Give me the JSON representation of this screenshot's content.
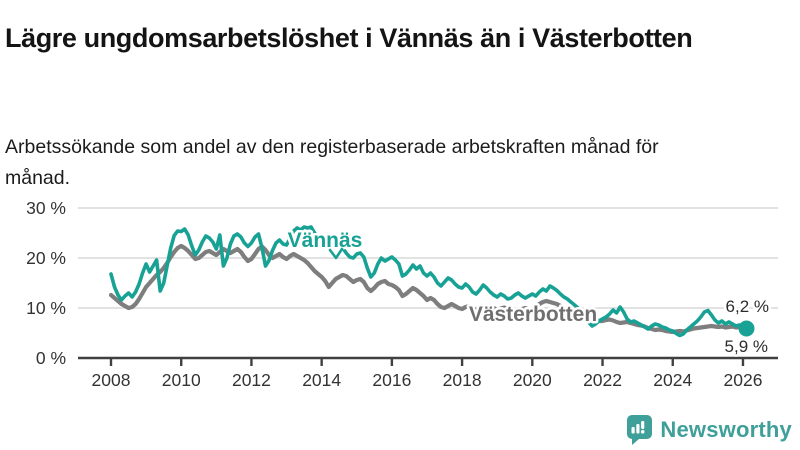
{
  "header": {
    "title": "Lägre ungdomsarbetslöshet i Vännäs än i Västerbotten",
    "subtitle": "Arbetssökande som andel av den registerbaserade arbetskraften månad för månad."
  },
  "chart_data": {
    "type": "line",
    "title": "Lägre ungdomsarbetslöshet i Vännäs än i Västerbotten",
    "subtitle": "Arbetssökande som andel av den registerbaserade arbetskraften månad för månad.",
    "unit": "%",
    "x_start": 2008.0,
    "x_step": 0.1,
    "x_end": 2026.1,
    "grid": "horizontal",
    "x_axis": {
      "ticks": [
        2008,
        2010,
        2012,
        2014,
        2016,
        2018,
        2020,
        2022,
        2024,
        2026
      ]
    },
    "y_axis": {
      "min": 0,
      "max": 30,
      "ticks": [
        {
          "value": 0,
          "label": "0 %"
        },
        {
          "value": 10,
          "label": "10 %"
        },
        {
          "value": 20,
          "label": "20 %"
        },
        {
          "value": 30,
          "label": "30 %"
        }
      ]
    },
    "series": [
      {
        "name": "Västerbotten",
        "color": "#7e7e7e",
        "label_color": "#6f6f6f",
        "end_label": "6,2 %",
        "end_value": 6.2,
        "values": [
          12.6,
          12.0,
          11.4,
          10.8,
          10.4,
          10.0,
          10.2,
          10.8,
          11.8,
          13.0,
          14.2,
          15.0,
          15.8,
          16.6,
          17.2,
          18.0,
          19.0,
          20.2,
          21.2,
          22.0,
          22.4,
          22.0,
          21.4,
          20.6,
          19.8,
          20.0,
          20.6,
          21.2,
          21.4,
          21.0,
          20.6,
          21.2,
          21.8,
          21.4,
          21.0,
          21.4,
          21.8,
          21.2,
          20.2,
          19.4,
          19.8,
          20.8,
          21.8,
          22.3,
          21.6,
          20.6,
          20.0,
          20.4,
          20.8,
          20.2,
          19.8,
          20.4,
          20.8,
          20.4,
          20.0,
          19.6,
          19.0,
          18.2,
          17.4,
          16.8,
          16.2,
          15.4,
          14.2,
          15.0,
          15.8,
          16.2,
          16.6,
          16.4,
          15.8,
          15.2,
          15.6,
          15.8,
          15.2,
          14.0,
          13.4,
          14.0,
          14.8,
          15.2,
          15.4,
          14.8,
          14.6,
          14.2,
          13.6,
          12.4,
          12.8,
          13.4,
          14.0,
          13.6,
          13.0,
          12.4,
          11.6,
          12.0,
          11.6,
          10.8,
          10.2,
          10.0,
          10.4,
          10.8,
          10.4,
          10.0,
          9.8,
          10.2,
          10.4,
          10.0,
          9.6,
          9.4,
          9.8,
          10.2,
          10.4,
          10.0,
          9.6,
          9.9,
          10.1,
          9.7,
          9.3,
          9.1,
          9.4,
          9.8,
          10.0,
          9.7,
          9.8,
          10.2,
          10.8,
          11.2,
          11.4,
          11.2,
          11.0,
          10.8,
          10.4,
          10.0,
          9.6,
          9.2,
          8.8,
          8.4,
          8.1,
          7.9,
          7.7,
          7.6,
          7.5,
          7.4,
          7.4,
          7.6,
          7.7,
          7.5,
          7.2,
          7.0,
          7.1,
          7.2,
          7.0,
          6.8,
          6.6,
          6.5,
          6.3,
          6.0,
          5.8,
          5.6,
          5.7,
          5.6,
          5.4,
          5.3,
          5.2,
          5.3,
          5.4,
          5.3,
          5.5,
          5.7,
          5.9,
          6.0,
          6.1,
          6.2,
          6.3,
          6.4,
          6.3,
          6.2,
          6.3,
          6.1,
          6.2,
          6.3,
          6.1,
          6.2,
          6.1,
          6.2
        ]
      },
      {
        "name": "Vännäs",
        "color": "#17a295",
        "label_color": "#17a295",
        "end_label": "5,9 %",
        "end_value": 5.9,
        "values": [
          16.8,
          14.2,
          12.6,
          11.6,
          12.4,
          13.0,
          12.2,
          13.2,
          14.8,
          17.0,
          18.8,
          17.2,
          18.4,
          19.6,
          13.4,
          15.0,
          18.5,
          22.0,
          24.5,
          25.4,
          25.3,
          25.8,
          24.6,
          22.4,
          20.6,
          21.6,
          23.2,
          24.4,
          24.0,
          23.2,
          21.8,
          24.6,
          18.4,
          20.0,
          22.8,
          24.4,
          24.8,
          24.2,
          23.0,
          22.3,
          23.0,
          24.2,
          24.8,
          22.0,
          18.4,
          19.5,
          21.5,
          23.0,
          23.6,
          22.8,
          22.6,
          24.0,
          25.4,
          26.0,
          25.6,
          26.2,
          26.0,
          26.2,
          25.0,
          24.2,
          24.4,
          23.6,
          22.8,
          23.4,
          22.6,
          23.2,
          22.0,
          21.0,
          20.2,
          20.0,
          20.8,
          21.0,
          20.2,
          18.0,
          16.2,
          17.0,
          18.8,
          20.0,
          19.4,
          19.8,
          20.2,
          19.6,
          18.8,
          16.4,
          16.8,
          17.6,
          18.6,
          17.8,
          18.4,
          17.0,
          16.4,
          17.0,
          16.2,
          15.0,
          14.4,
          15.2,
          16.0,
          15.6,
          14.8,
          14.2,
          14.0,
          14.8,
          14.2,
          13.2,
          12.8,
          13.6,
          14.6,
          14.0,
          13.2,
          12.6,
          12.2,
          12.8,
          12.4,
          11.8,
          12.0,
          12.6,
          13.0,
          12.4,
          12.0,
          12.4,
          12.8,
          12.4,
          13.2,
          13.8,
          13.4,
          14.4,
          14.0,
          13.5,
          12.8,
          12.2,
          11.8,
          11.2,
          10.6,
          10.0,
          9.2,
          8.2,
          7.2,
          6.4,
          6.8,
          7.4,
          7.8,
          8.2,
          8.8,
          9.6,
          9.0,
          10.2,
          9.2,
          7.8,
          7.2,
          7.4,
          7.0,
          6.6,
          6.2,
          5.8,
          6.4,
          6.8,
          6.6,
          6.2,
          6.0,
          5.6,
          5.4,
          4.9,
          4.5,
          4.8,
          5.6,
          6.2,
          6.8,
          7.4,
          8.2,
          9.2,
          9.5,
          8.6,
          7.6,
          7.0,
          7.4,
          6.8,
          7.2,
          6.8,
          6.4,
          6.6,
          6.2,
          5.9
        ]
      }
    ],
    "annotations": {
      "vannas_label": "Vännäs",
      "vasterbotten_label": "Västerbotten",
      "end_label_top": "6,2 %",
      "end_label_bottom": "5,9 %"
    },
    "colors": {
      "vannas": "#17a295",
      "vasterbotten": "#7e7e7e",
      "grid": "#d9d9d9",
      "axis": "#404040",
      "tick_text": "#333333",
      "end_label_text": "#2d2d2d"
    }
  },
  "branding": {
    "logo_text": "Newsworthy",
    "logo_icon": "bar-chart-speech-bubble-icon",
    "color": "#3f9f99"
  }
}
